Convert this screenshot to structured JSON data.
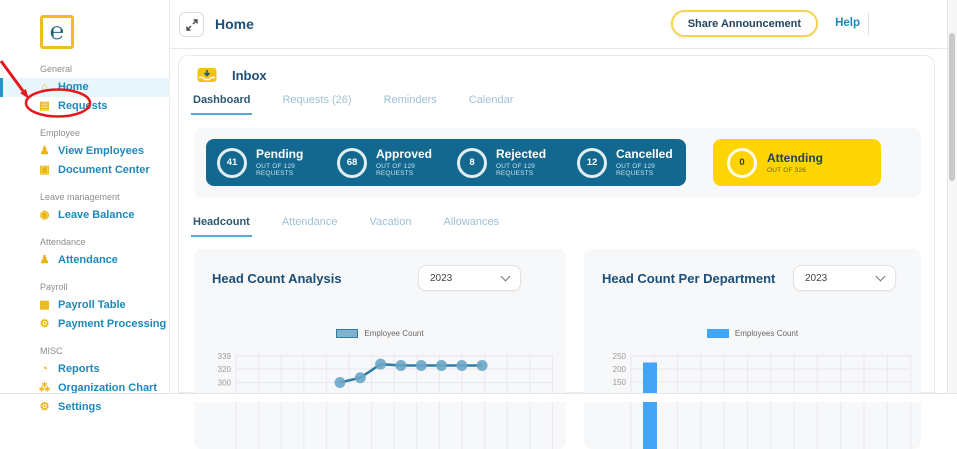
{
  "app": {
    "logo_glyph": "℮"
  },
  "header": {
    "title": "Home",
    "share_button_label": "Share Announcement",
    "help_label": "Help"
  },
  "sidebar": {
    "sections": [
      {
        "label": "General",
        "items": [
          {
            "label": "Home",
            "icon": "home-icon",
            "glyph": "⌂",
            "active": true
          },
          {
            "label": "Requests",
            "icon": "requests-icon",
            "glyph": "▤",
            "annotated": true
          }
        ]
      },
      {
        "label": "Employee",
        "items": [
          {
            "label": "View Employees",
            "icon": "employees-icon",
            "glyph": "♟"
          },
          {
            "label": "Document Center",
            "icon": "document-icon",
            "glyph": "▣"
          }
        ]
      },
      {
        "label": "Leave management",
        "items": [
          {
            "label": "Leave Balance",
            "icon": "leave-balance-icon",
            "glyph": "◉"
          }
        ]
      },
      {
        "label": "Attendance",
        "items": [
          {
            "label": "Attendance",
            "icon": "attendance-icon",
            "glyph": "♟"
          }
        ]
      },
      {
        "label": "Payroll",
        "items": [
          {
            "label": "Payroll Table",
            "icon": "payroll-table-icon",
            "glyph": "▦"
          },
          {
            "label": "Payment Processing",
            "icon": "payment-processing-icon",
            "glyph": "⚙"
          }
        ]
      },
      {
        "label": "MISC",
        "items": [
          {
            "label": "Reports",
            "icon": "reports-icon",
            "glyph": "◔"
          },
          {
            "label": "Organization Chart",
            "icon": "org-chart-icon",
            "glyph": "⁂"
          },
          {
            "label": "Settings",
            "icon": "settings-icon",
            "glyph": "⚙"
          }
        ]
      }
    ]
  },
  "inbox": {
    "title": "Inbox",
    "tabs": [
      {
        "label": "Dashboard",
        "active": true
      },
      {
        "label": "Requests (26)"
      },
      {
        "label": "Reminders"
      },
      {
        "label": "Calendar"
      }
    ]
  },
  "stats": {
    "cards": [
      {
        "value": "41",
        "label": "Pending",
        "sub": "OUT OF 129 REQUESTS"
      },
      {
        "value": "68",
        "label": "Approved",
        "sub": "OUT OF 129 REQUESTS"
      },
      {
        "value": "8",
        "label": "Rejected",
        "sub": "OUT OF 129 REQUESTS"
      },
      {
        "value": "12",
        "label": "Cancelled",
        "sub": "OUT OF 129 REQUESTS"
      }
    ],
    "attending": {
      "value": "0",
      "label": "Attending",
      "sub": "OUT OF 326"
    }
  },
  "analytics_tabs": [
    {
      "label": "Headcount",
      "active": true
    },
    {
      "label": "Attendance"
    },
    {
      "label": "Vacation"
    },
    {
      "label": "Allowances"
    }
  ],
  "charts": [
    {
      "title": "Head Count Analysis",
      "year": "2023",
      "legend": "Employee Count"
    },
    {
      "title": "Head Count Per Department",
      "year": "2023",
      "legend": "Employees Count"
    }
  ],
  "chart_data": [
    {
      "type": "line",
      "title": "Head Count Analysis",
      "legend": [
        "Employee Count"
      ],
      "y_ticks_visible": [
        339,
        320,
        300
      ],
      "series": [
        {
          "name": "Employee Count",
          "values": [
            300,
            307,
            327,
            325,
            325,
            325,
            325,
            325
          ]
        }
      ],
      "grid": true,
      "legend_position": "top-center",
      "note_visible_region": "chart cropped at bottom of screenshot"
    },
    {
      "type": "bar",
      "title": "Head Count Per Department",
      "legend": [
        "Employees Count"
      ],
      "y_ticks_visible": [
        250,
        200,
        150
      ],
      "series": [
        {
          "name": "Employees Count",
          "values": [
            225
          ]
        }
      ],
      "grid": true,
      "legend_position": "top-center",
      "note_visible_region": "chart cropped at bottom of screenshot"
    }
  ],
  "colors": {
    "accent_blue": "#13688f",
    "accent_yellow": "#ffd404",
    "link": "#1b87b9",
    "navy": "#1b4e78",
    "bar_blue": "#42a5f5",
    "line_blue": "#2e7ca3",
    "line_marker": "#6aa6c8",
    "gold_icon": "#e9b412",
    "annotation_red": "#e4181e",
    "grid_line": "#e8e9ee",
    "tick_text": "#999999"
  }
}
